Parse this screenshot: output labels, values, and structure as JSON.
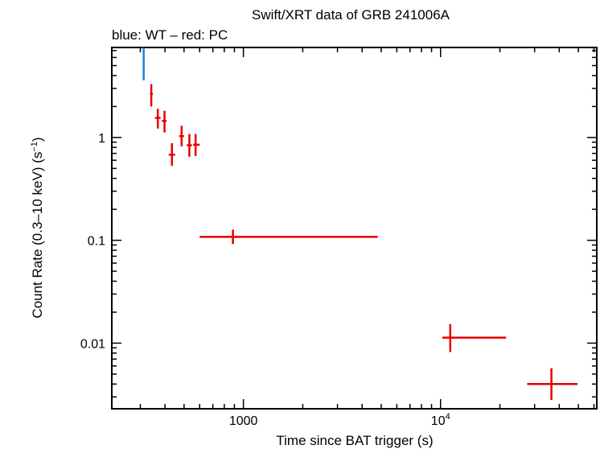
{
  "chart_data": {
    "type": "scatter",
    "title": "Swift/XRT data of GRB 241006A",
    "subtitle": "blue: WT – red: PC",
    "xlabel": "Time since BAT trigger (s)",
    "ylabel_main": "Count Rate (0.3–10 keV) (s",
    "ylabel_sup": "−1",
    "ylabel_close": ")",
    "xscale": "log",
    "yscale": "log",
    "xlim": [
      215,
      62000
    ],
    "ylim": [
      0.0023,
      7.5
    ],
    "x_ticks": [
      {
        "value": 1000,
        "label": "1000"
      },
      {
        "value": 10000,
        "label_base": "10",
        "label_sup": "4"
      }
    ],
    "y_ticks": [
      {
        "value": 1,
        "label": "1"
      },
      {
        "value": 0.1,
        "label": "0.1"
      },
      {
        "value": 0.01,
        "label": "0.01"
      }
    ],
    "series": [
      {
        "name": "WT",
        "color": "#1a7fe0",
        "points": [
          {
            "x": 312,
            "xlo": 310,
            "xhi": 314,
            "y": 5.0,
            "ylo": 3.6,
            "yhi": 7.5
          }
        ]
      },
      {
        "name": "PC",
        "color": "#e60000",
        "points": [
          {
            "x": 341,
            "xlo": 336,
            "xhi": 347,
            "y": 2.65,
            "ylo": 2.0,
            "yhi": 3.3
          },
          {
            "x": 368,
            "xlo": 356,
            "xhi": 380,
            "y": 1.55,
            "ylo": 1.22,
            "yhi": 1.9
          },
          {
            "x": 398,
            "xlo": 386,
            "xhi": 408,
            "y": 1.45,
            "ylo": 1.12,
            "yhi": 1.82
          },
          {
            "x": 434,
            "xlo": 418,
            "xhi": 450,
            "y": 0.68,
            "ylo": 0.53,
            "yhi": 0.88
          },
          {
            "x": 486,
            "xlo": 472,
            "xhi": 500,
            "y": 1.03,
            "ylo": 0.82,
            "yhi": 1.3
          },
          {
            "x": 532,
            "xlo": 516,
            "xhi": 548,
            "y": 0.84,
            "ylo": 0.65,
            "yhi": 1.08
          },
          {
            "x": 572,
            "xlo": 556,
            "xhi": 600,
            "y": 0.85,
            "ylo": 0.66,
            "yhi": 1.08
          },
          {
            "x": 885,
            "xlo": 600,
            "xhi": 4800,
            "y": 0.108,
            "ylo": 0.092,
            "yhi": 0.127
          },
          {
            "x": 11200,
            "xlo": 10200,
            "xhi": 21500,
            "y": 0.0113,
            "ylo": 0.0082,
            "yhi": 0.0153
          },
          {
            "x": 36500,
            "xlo": 27500,
            "xhi": 49500,
            "y": 0.004,
            "ylo": 0.0028,
            "yhi": 0.0057
          }
        ]
      }
    ]
  }
}
